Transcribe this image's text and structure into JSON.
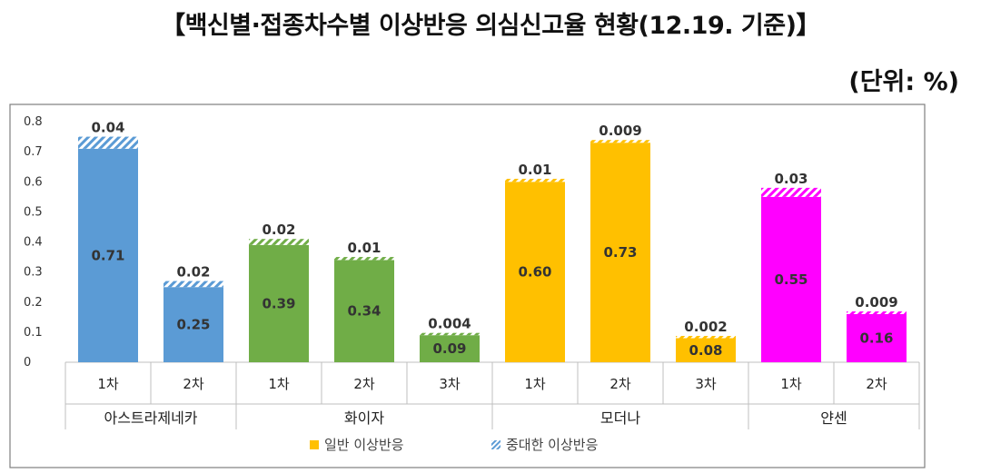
{
  "header": {
    "title": "【백신별·접종차수별 이상반응 의심신고율 현황(12.19. 기준)】",
    "unit": "(단위: %)"
  },
  "chart_data": {
    "type": "bar",
    "stacked": true,
    "ylim": [
      0,
      0.8
    ],
    "yticks": [
      "0",
      "0.1",
      "0.2",
      "0.3",
      "0.4",
      "0.5",
      "0.6",
      "0.7",
      "0.8"
    ],
    "categories": [
      "1차",
      "2차",
      "1차",
      "2차",
      "3차",
      "1차",
      "2차",
      "3차",
      "1차",
      "2차"
    ],
    "groups": [
      {
        "label": "아스트라제네카",
        "count": 2,
        "color": "#5b9bd5"
      },
      {
        "label": "화이자",
        "count": 3,
        "color": "#70ad47"
      },
      {
        "label": "모더나",
        "count": 3,
        "color": "#ffc000"
      },
      {
        "label": "얀센",
        "count": 2,
        "color": "#ff00ff"
      }
    ],
    "series": [
      {
        "name": "일반 이상반응",
        "values": [
          0.71,
          0.25,
          0.39,
          0.34,
          0.09,
          0.6,
          0.73,
          0.08,
          0.55,
          0.16
        ],
        "labels": [
          "0.71",
          "0.25",
          "0.39",
          "0.34",
          "0.09",
          "0.60",
          "0.73",
          "0.08",
          "0.55",
          "0.16"
        ]
      },
      {
        "name": "중대한 이상반응",
        "values": [
          0.04,
          0.02,
          0.02,
          0.01,
          0.004,
          0.01,
          0.009,
          0.002,
          0.03,
          0.009
        ],
        "labels": [
          "0.04",
          "0.02",
          "0.02",
          "0.01",
          "0.004",
          "0.01",
          "0.009",
          "0.002",
          "0.03",
          "0.009"
        ]
      }
    ],
    "legend_position": "bottom",
    "grid": false
  }
}
